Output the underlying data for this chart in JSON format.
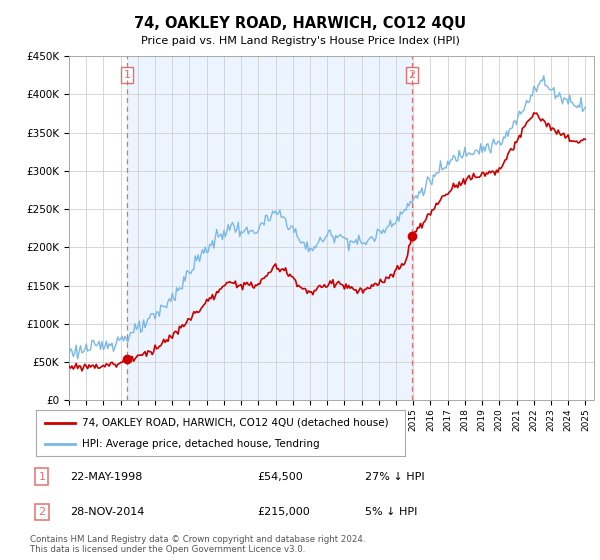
{
  "title": "74, OAKLEY ROAD, HARWICH, CO12 4QU",
  "subtitle": "Price paid vs. HM Land Registry's House Price Index (HPI)",
  "footer": "Contains HM Land Registry data © Crown copyright and database right 2024.\nThis data is licensed under the Open Government Licence v3.0.",
  "legend_line1": "74, OAKLEY ROAD, HARWICH, CO12 4QU (detached house)",
  "legend_line2": "HPI: Average price, detached house, Tendring",
  "purchase1_label": "1",
  "purchase1_date": "22-MAY-1998",
  "purchase1_price": "£54,500",
  "purchase1_hpi": "27% ↓ HPI",
  "purchase2_label": "2",
  "purchase2_date": "28-NOV-2014",
  "purchase2_price": "£215,000",
  "purchase2_hpi": "5% ↓ HPI",
  "hpi_color": "#7ab8e8",
  "price_color": "#cc0000",
  "marker_color": "#cc0000",
  "vline_color": "#e07070",
  "grid_color": "#d0d0d0",
  "bg_fill_color": "#ddeeff",
  "background_color": "#ffffff",
  "ylim": [
    0,
    450000
  ],
  "yticks": [
    0,
    50000,
    100000,
    150000,
    200000,
    250000,
    300000,
    350000,
    400000,
    450000
  ],
  "ytick_labels": [
    "£0",
    "£50K",
    "£100K",
    "£150K",
    "£200K",
    "£250K",
    "£300K",
    "£350K",
    "£400K",
    "£450K"
  ],
  "purchase1_year": 1998.38,
  "purchase1_value": 54500,
  "purchase2_year": 2014.92,
  "purchase2_value": 215000,
  "vline1_year": 1998.38,
  "vline2_year": 2014.92,
  "xlim_start": 1995.0,
  "xlim_end": 2025.5
}
